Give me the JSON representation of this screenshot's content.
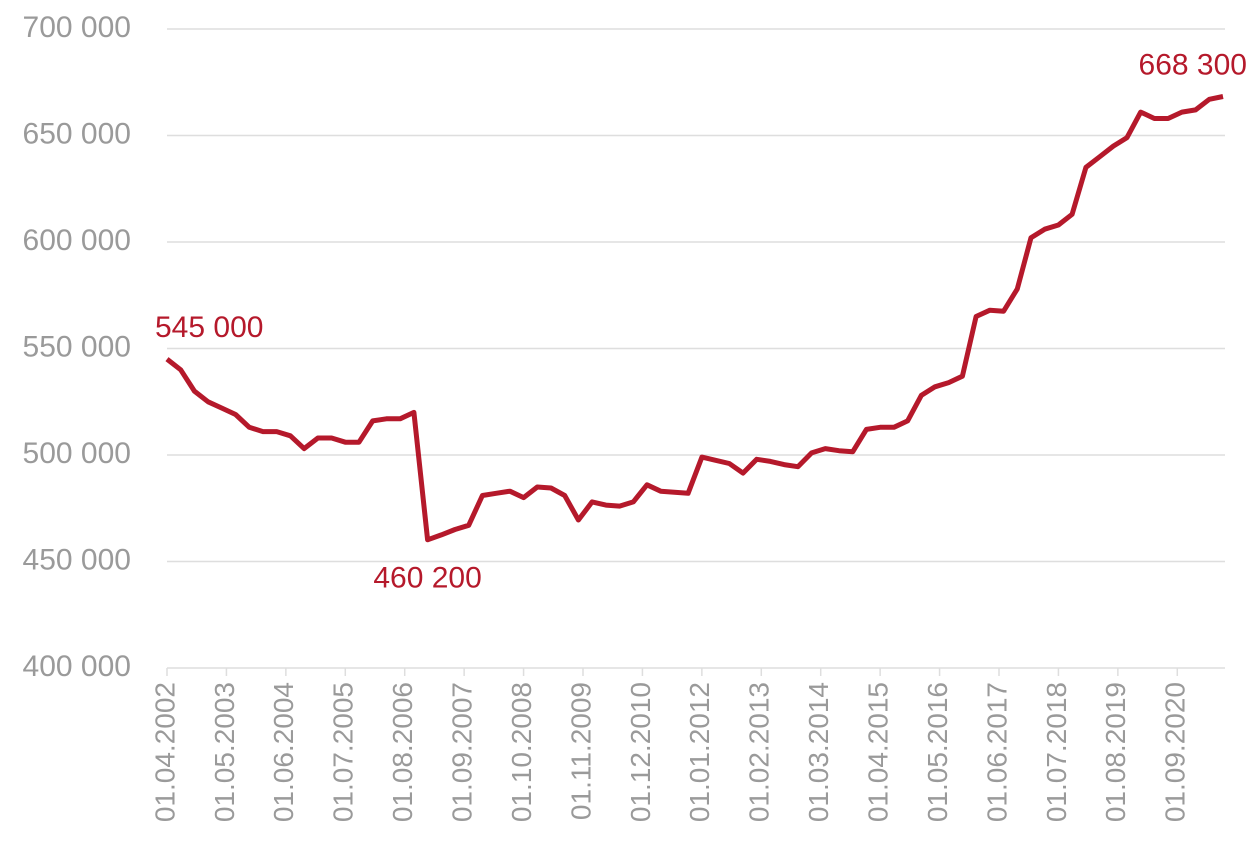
{
  "chart_data": {
    "type": "line",
    "x": [
      "01.04.2002",
      "01.07.2002",
      "01.10.2002",
      "01.01.2003",
      "01.04.2003",
      "01.07.2003",
      "01.10.2003",
      "01.01.2004",
      "01.04.2004",
      "01.07.2004",
      "01.10.2004",
      "01.01.2005",
      "01.04.2005",
      "01.07.2005",
      "01.10.2005",
      "01.01.2006",
      "01.04.2006",
      "01.07.2006",
      "01.10.2006",
      "01.01.2007",
      "01.04.2007",
      "01.07.2007",
      "01.10.2007",
      "01.01.2008",
      "01.04.2008",
      "01.07.2008",
      "01.10.2008",
      "01.01.2009",
      "01.04.2009",
      "01.07.2009",
      "01.10.2009",
      "01.01.2010",
      "01.04.2010",
      "01.07.2010",
      "01.10.2010",
      "01.01.2011",
      "01.04.2011",
      "01.07.2011",
      "01.10.2011",
      "01.01.2012",
      "01.04.2012",
      "01.07.2012",
      "01.10.2012",
      "01.01.2013",
      "01.04.2013",
      "01.07.2013",
      "01.10.2013",
      "01.01.2014",
      "01.04.2014",
      "01.07.2014",
      "01.10.2014",
      "01.01.2015",
      "01.04.2015",
      "01.07.2015",
      "01.10.2015",
      "01.01.2016",
      "01.04.2016",
      "01.07.2016",
      "01.10.2016",
      "01.01.2017",
      "01.04.2017",
      "01.07.2017",
      "01.10.2017",
      "01.01.2018",
      "01.04.2018",
      "01.07.2018",
      "01.10.2018",
      "01.01.2019",
      "01.04.2019",
      "01.07.2019",
      "01.10.2019",
      "01.01.2020",
      "01.04.2020",
      "01.07.2020",
      "01.10.2020",
      "01.01.2021",
      "01.04.2021",
      "01.07.2021"
    ],
    "series": [
      {
        "color": "#b5192b",
        "values": [
          545000,
          540000,
          530000,
          525000,
          522000,
          519000,
          513000,
          511000,
          511000,
          509000,
          503000,
          508000,
          508000,
          506000,
          506000,
          516000,
          517000,
          517000,
          520000,
          460200,
          462500,
          465000,
          467000,
          481000,
          482000,
          483000,
          480000,
          485000,
          484500,
          481000,
          469500,
          478000,
          476500,
          476000,
          478000,
          486000,
          483000,
          482500,
          482000,
          499000,
          497500,
          496000,
          491500,
          498000,
          497000,
          495500,
          494500,
          501000,
          503000,
          502000,
          501500,
          512000,
          513000,
          513000,
          516000,
          528000,
          532000,
          534000,
          537000,
          565000,
          568000,
          567500,
          578000,
          602000,
          606000,
          608000,
          613000,
          635000,
          640000,
          645000,
          649000,
          661000,
          658000,
          658000,
          661000,
          662000,
          667000,
          668300
        ],
        "value_labels": [
          "545 000",
          null,
          null,
          null,
          null,
          null,
          null,
          null,
          null,
          null,
          null,
          null,
          null,
          null,
          null,
          null,
          null,
          null,
          null,
          "460 200",
          null,
          null,
          null,
          null,
          null,
          null,
          null,
          null,
          null,
          null,
          null,
          null,
          null,
          null,
          null,
          null,
          null,
          null,
          null,
          null,
          null,
          null,
          null,
          null,
          null,
          null,
          null,
          null,
          null,
          null,
          null,
          null,
          null,
          null,
          null,
          null,
          null,
          null,
          null,
          null,
          null,
          null,
          null,
          null,
          null,
          null,
          null,
          null,
          null,
          null,
          null,
          null,
          null,
          null,
          null,
          null,
          null,
          "668 300"
        ]
      }
    ],
    "xlim": [
      "01.04.2002",
      "01.07.2021"
    ],
    "xticks": [
      "01.04.2002",
      "01.05.2003",
      "01.06.2004",
      "01.07.2005",
      "01.08.2006",
      "01.09.2007",
      "01.10.2008",
      "01.11.2009",
      "01.12.2010",
      "01.01.2012",
      "01.02.2013",
      "01.03.2014",
      "01.04.2015",
      "01.05.2016",
      "01.06.2017",
      "01.07.2018",
      "01.08.2019",
      "01.09.2020"
    ],
    "ylim": [
      400000,
      700000
    ],
    "yticks": [
      {
        "value": 400000,
        "label": "400 000"
      },
      {
        "value": 450000,
        "label": "450 000"
      },
      {
        "value": 500000,
        "label": "500 000"
      },
      {
        "value": 550000,
        "label": "550 000"
      },
      {
        "value": 600000,
        "label": "600 000"
      },
      {
        "value": 650000,
        "label": "650 000"
      },
      {
        "value": 700000,
        "label": "700 000"
      }
    ],
    "grid": true
  }
}
